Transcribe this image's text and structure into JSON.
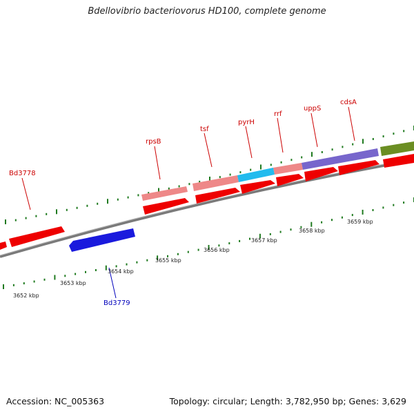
{
  "title": "Bdellovibrio bacteriovorus HD100, complete genome",
  "footer": {
    "accession": "Accession: NC_005363",
    "summary": "Topology: circular; Length: 3,782,950 bp; Genes: 3,629"
  },
  "colors": {
    "cds": "#ee0000",
    "rrna": "#ee8888",
    "trna": "#ee8888",
    "reverse": "#1a1add",
    "cyan": "#22bbee",
    "purple": "#7766cc",
    "olive": "#6b8e23",
    "tick": "#1f7a1f",
    "label_forward": "#cc0000",
    "label_reverse": "#0000bb",
    "backbone": "#7a7a7a"
  },
  "ticks": {
    "labels": [
      "3652 kbp",
      "3653 kbp",
      "3654 kbp",
      "3655 kbp",
      "3656 kbp",
      "3657 kbp",
      "3658 kbp",
      "3659 kbp"
    ]
  },
  "genes": {
    "labels": [
      {
        "text": "Bd3778",
        "strand": "forward"
      },
      {
        "text": "rpsB",
        "strand": "forward"
      },
      {
        "text": "tsf",
        "strand": "forward"
      },
      {
        "text": "pyrH",
        "strand": "forward"
      },
      {
        "text": "rrf",
        "strand": "forward"
      },
      {
        "text": "uppS",
        "strand": "forward"
      },
      {
        "text": "cdsA",
        "strand": "forward"
      },
      {
        "text": "Bd3779",
        "strand": "reverse"
      }
    ]
  }
}
